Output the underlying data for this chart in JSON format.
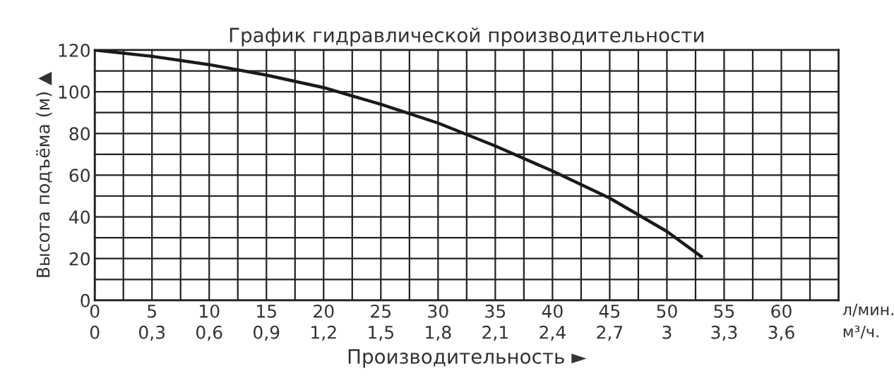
{
  "chart_data": {
    "type": "line",
    "title": "График гидравлической производительности",
    "xlabel": "Производительность ►",
    "ylabel": "Высота подъёма (м) ▲",
    "x": [
      0,
      5,
      10,
      15,
      20,
      25,
      30,
      35,
      40,
      45,
      50,
      53
    ],
    "series": [
      {
        "color": "#1a1a1a",
        "values": [
          120,
          117,
          113,
          108,
          102,
          94,
          85,
          74,
          62,
          49,
          33,
          21
        ]
      }
    ],
    "xlim": [
      0,
      65
    ],
    "xticks": [
      0,
      {
        "value": 2.5,
        "label": null
      },
      5,
      {
        "value": 7.5,
        "label": null
      },
      10,
      {
        "value": 12.5,
        "label": null
      },
      15,
      {
        "value": 17.5,
        "label": null
      },
      20,
      {
        "value": 22.5,
        "label": null
      },
      25,
      {
        "value": 27.5,
        "label": null
      },
      30,
      {
        "value": 32.5,
        "label": null
      },
      35,
      {
        "value": 37.5,
        "label": null
      },
      40,
      {
        "value": 42.5,
        "label": null
      },
      45,
      {
        "value": 47.5,
        "label": null
      },
      50,
      {
        "value": 52.5,
        "label": null
      },
      55,
      {
        "value": 57.5,
        "label": null
      },
      60,
      {
        "value": 62.5,
        "label": null
      }
    ],
    "ylim": [
      0,
      120
    ],
    "yticks": [
      0,
      {
        "value": 10,
        "label": null
      },
      20,
      {
        "value": 30,
        "label": null
      },
      40,
      {
        "value": 50,
        "label": null
      },
      60,
      {
        "value": 70,
        "label": null
      },
      80,
      {
        "value": 90,
        "label": null
      },
      100,
      {
        "value": 110,
        "label": null
      },
      120
    ],
    "x2lim": [
      0,
      3.9
    ],
    "x2ticks": [
      0,
      {
        "value": 0.3,
        "label": "0,3"
      },
      {
        "value": 0.6,
        "label": "0,6"
      },
      {
        "value": 0.9,
        "label": "0,9"
      },
      {
        "value": 1.2,
        "label": "1,2"
      },
      {
        "value": 1.5,
        "label": "1,5"
      },
      {
        "value": 1.8,
        "label": "1,8"
      },
      {
        "value": 2.1,
        "label": "2,1"
      },
      {
        "value": 2.4,
        "label": "2,4"
      },
      {
        "value": 2.7,
        "label": "2,7"
      },
      3,
      {
        "value": 3.3,
        "label": "3,3"
      },
      {
        "value": 3.6,
        "label": "3,6"
      }
    ],
    "x2label": "м³/ч.",
    "annotations": [
      "л/мин."
    ],
    "grid": true,
    "marker": "none",
    "line_style": "solid"
  }
}
